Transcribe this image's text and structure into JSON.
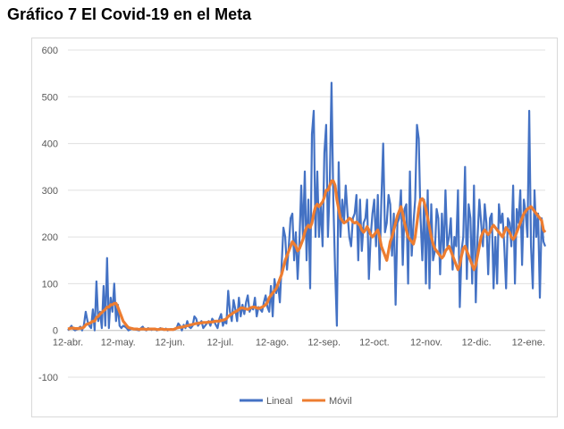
{
  "header": {
    "title": "Gráfico 7 El Covid-19 en el Meta"
  },
  "chart_data": {
    "type": "line",
    "title": "Gráfico 7 El Covid-19 en el Meta",
    "xlabel": "",
    "ylabel": "",
    "ylim": [
      -100,
      600
    ],
    "yticks": [
      -100,
      0,
      100,
      200,
      300,
      400,
      500,
      600
    ],
    "x_start": "12-abr.",
    "x_tick_labels": [
      "12-abr.",
      "12-may.",
      "12-jun.",
      "12-jul.",
      "12-ago.",
      "12-sep.",
      "12-oct.",
      "12-nov.",
      "12-dic.",
      "12-ene."
    ],
    "x_tick_days": [
      0,
      30,
      61,
      91,
      122,
      153,
      183,
      214,
      244,
      275
    ],
    "x_range_days": [
      0,
      285
    ],
    "grid": "horizontal",
    "legend_position": "bottom",
    "series": [
      {
        "name": "Lineal",
        "color": "#4472c4",
        "values": [
          0,
          5,
          10,
          3,
          0,
          2,
          5,
          8,
          0,
          12,
          40,
          20,
          10,
          5,
          45,
          0,
          105,
          20,
          40,
          5,
          95,
          10,
          155,
          5,
          70,
          40,
          100,
          20,
          55,
          10,
          5,
          10,
          8,
          5,
          0,
          2,
          5,
          3,
          2,
          1,
          0,
          5,
          8,
          2,
          0,
          5,
          3,
          1,
          4,
          2,
          0,
          3,
          5,
          2,
          1,
          4,
          0,
          2,
          3,
          1,
          2,
          5,
          15,
          10,
          0,
          12,
          5,
          20,
          8,
          5,
          10,
          30,
          25,
          10,
          15,
          20,
          5,
          10,
          15,
          20,
          10,
          25,
          20,
          12,
          5,
          25,
          35,
          10,
          20,
          15,
          85,
          40,
          20,
          65,
          45,
          20,
          70,
          30,
          55,
          35,
          60,
          75,
          40,
          50,
          45,
          70,
          30,
          50,
          45,
          40,
          60,
          75,
          50,
          40,
          95,
          30,
          110,
          80,
          100,
          60,
          140,
          220,
          200,
          130,
          180,
          240,
          250,
          150,
          210,
          110,
          190,
          310,
          200,
          340,
          150,
          280,
          90,
          420,
          470,
          200,
          340,
          200,
          270,
          180,
          380,
          440,
          200,
          310,
          530,
          280,
          130,
          10,
          360,
          200,
          280,
          230,
          310,
          250,
          200,
          180,
          240,
          250,
          290,
          150,
          280,
          170,
          230,
          240,
          280,
          110,
          200,
          250,
          280,
          180,
          290,
          130,
          280,
          400,
          210,
          230,
          290,
          270,
          160,
          250,
          55,
          230,
          240,
          300,
          140,
          260,
          270,
          100,
          340,
          160,
          230,
          280,
          440,
          410,
          240,
          150,
          280,
          100,
          300,
          90,
          270,
          150,
          170,
          260,
          240,
          120,
          250,
          160,
          300,
          180,
          200,
          240,
          130,
          200,
          180,
          300,
          50,
          170,
          200,
          350,
          110,
          270,
          240,
          100,
          310,
          60,
          200,
          280,
          230,
          180,
          270,
          230,
          120,
          240,
          250,
          90,
          200,
          100,
          270,
          230,
          250,
          180,
          90,
          240,
          230,
          180,
          310,
          100,
          260,
          230,
          300,
          140,
          280,
          250,
          200,
          470,
          180,
          90,
          300,
          200,
          250,
          70,
          240,
          190,
          180
        ]
      },
      {
        "name": "Móvil",
        "color": "#ed7d31",
        "values": [
          3,
          4,
          5,
          5,
          4,
          4,
          4,
          5,
          5,
          7,
          12,
          14,
          15,
          17,
          20,
          20,
          28,
          30,
          35,
          38,
          42,
          45,
          50,
          50,
          55,
          55,
          58,
          58,
          50,
          40,
          30,
          20,
          15,
          10,
          6,
          5,
          4,
          3,
          3,
          3,
          2,
          3,
          3,
          3,
          2,
          3,
          3,
          3,
          3,
          3,
          2,
          2,
          3,
          3,
          2,
          2,
          2,
          2,
          2,
          2,
          3,
          5,
          6,
          7,
          7,
          8,
          9,
          10,
          11,
          12,
          13,
          14,
          15,
          15,
          16,
          16,
          17,
          17,
          17,
          18,
          18,
          18,
          19,
          20,
          20,
          20,
          21,
          22,
          23,
          25,
          30,
          33,
          35,
          38,
          40,
          42,
          45,
          48,
          48,
          47,
          46,
          45,
          47,
          49,
          50,
          50,
          48,
          47,
          48,
          50,
          52,
          55,
          60,
          70,
          75,
          80,
          85,
          90,
          100,
          110,
          120,
          135,
          150,
          160,
          170,
          180,
          190,
          185,
          180,
          170,
          175,
          185,
          195,
          210,
          220,
          225,
          220,
          230,
          250,
          265,
          270,
          265,
          270,
          275,
          285,
          300,
          300,
          310,
          320,
          320,
          310,
          280,
          260,
          240,
          235,
          230,
          232,
          235,
          240,
          238,
          232,
          230,
          232,
          228,
          225,
          215,
          210,
          215,
          222,
          215,
          205,
          200,
          205,
          210,
          215,
          200,
          180,
          170,
          160,
          150,
          170,
          190,
          200,
          215,
          230,
          245,
          255,
          265,
          250,
          230,
          215,
          200,
          195,
          190,
          185,
          200,
          230,
          260,
          280,
          282,
          275,
          260,
          240,
          220,
          200,
          185,
          175,
          170,
          165,
          160,
          155,
          160,
          170,
          175,
          180,
          170,
          160,
          150,
          140,
          130,
          140,
          160,
          175,
          180,
          170,
          160,
          150,
          140,
          130,
          140,
          160,
          180,
          200,
          210,
          215,
          210,
          205,
          210,
          220,
          225,
          220,
          215,
          210,
          205,
          200,
          210,
          220,
          215,
          210,
          200,
          195,
          200,
          210,
          220,
          230,
          240,
          250,
          255,
          260,
          262,
          265,
          260,
          255,
          250,
          245,
          240,
          235,
          215,
          210
        ]
      }
    ]
  }
}
